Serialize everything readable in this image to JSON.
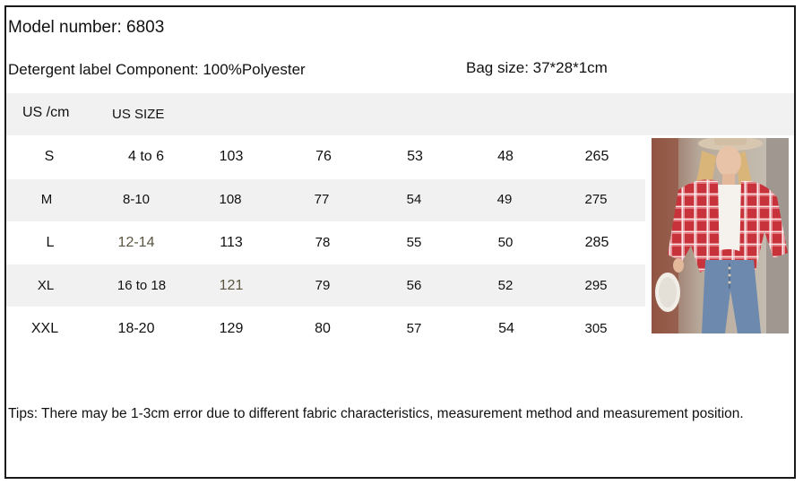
{
  "model_number": "Model number: 6803",
  "detergent": "Detergent label Component: 100%Polyester",
  "bag_size": "Bag size: 37*28*1cm",
  "table": {
    "headers": [
      "US /cm",
      "US SIZE"
    ],
    "rows": [
      [
        "S",
        "4 to 6",
        "103",
        "76",
        "53",
        "48",
        "265"
      ],
      [
        "M",
        "8-10",
        "108",
        "77",
        "54",
        "49",
        "275"
      ],
      [
        "L",
        "12-14",
        "113",
        "78",
        "55",
        "50",
        "285"
      ],
      [
        "XL",
        "16 to 18",
        "121",
        "79",
        "56",
        "52",
        "295"
      ],
      [
        "XXL",
        "18-20",
        "129",
        "80",
        "57",
        "54",
        "305"
      ]
    ]
  },
  "tips": "Tips: There may be 1-3cm error due to different fabric characteristics, measurement method and measurement position.",
  "colors": {
    "band": "#f1f1f1",
    "shirt_red": "#c8323a",
    "jeans": "#6d89ad"
  }
}
